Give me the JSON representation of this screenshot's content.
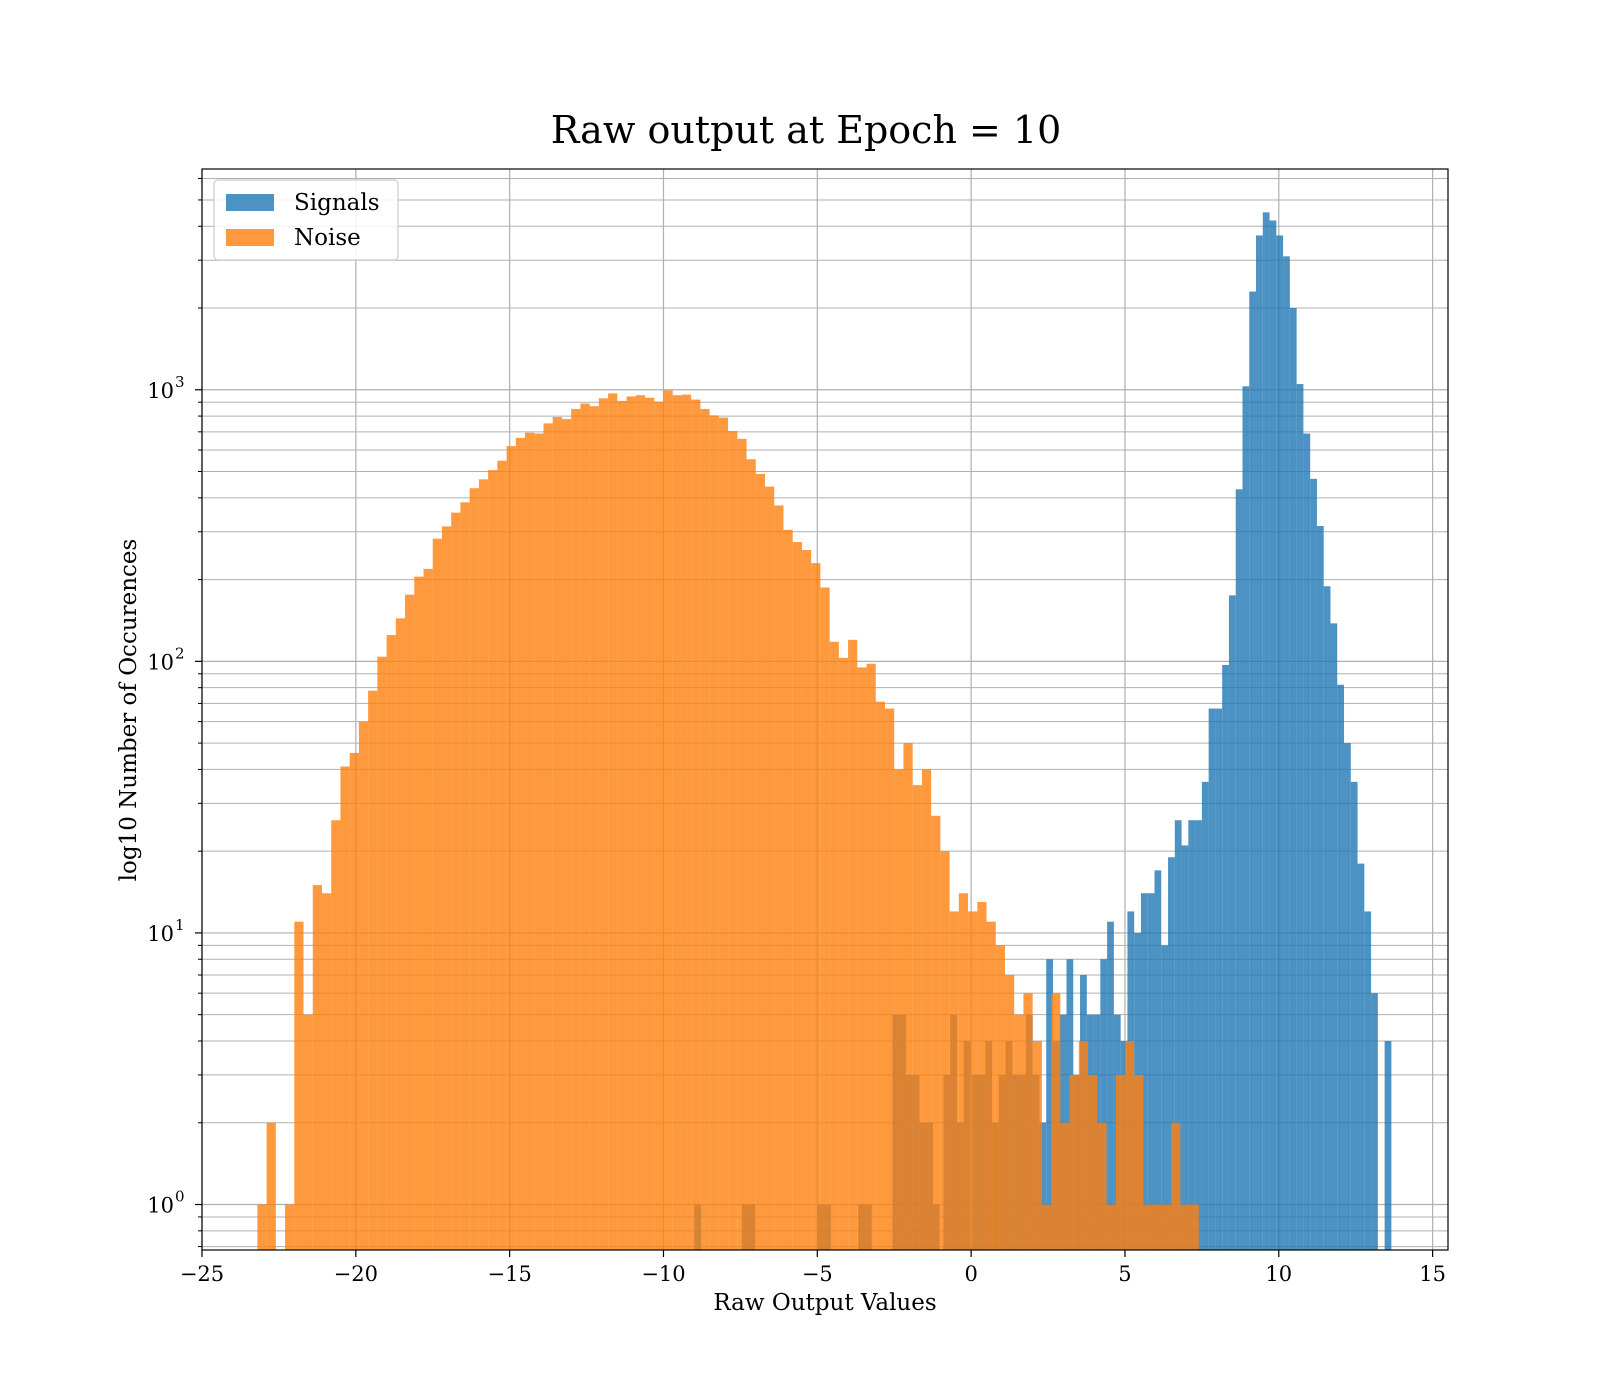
{
  "chart_data": {
    "type": "bar",
    "subtype": "histogram",
    "title": "Raw output at Epoch = 10",
    "xlabel": "Raw Output Values",
    "ylabel": "log10 Number of Occurences",
    "xlim": [
      -25,
      15.5
    ],
    "ylim": [
      0.68,
      6500
    ],
    "yscale": "log",
    "grid": true,
    "legend_position": "top-left",
    "x_ticks": [
      -25,
      -20,
      -15,
      -10,
      -5,
      0,
      5,
      10,
      15
    ],
    "x_tick_labels": [
      "−25",
      "−20",
      "−15",
      "−10",
      "−5",
      "0",
      "5",
      "10",
      "15"
    ],
    "y_ticks": [
      1,
      10,
      100,
      1000
    ],
    "y_tick_labels": [
      {
        "base": "10",
        "exp": "0"
      },
      {
        "base": "10",
        "exp": "1"
      },
      {
        "base": "10",
        "exp": "2"
      },
      {
        "base": "10",
        "exp": "3"
      }
    ],
    "series": [
      {
        "name": "Signals",
        "color": "#1f77b4",
        "opacity": 0.8,
        "bins": [
          [
            -9.0,
            -8.78,
            1
          ],
          [
            -7.45,
            -7.23,
            1
          ],
          [
            -7.23,
            -7.01,
            1
          ],
          [
            -5.0,
            -4.78,
            1
          ],
          [
            -4.78,
            -4.56,
            1
          ],
          [
            -3.67,
            -3.45,
            1
          ],
          [
            -3.45,
            -3.23,
            1
          ],
          [
            -2.56,
            -2.34,
            5
          ],
          [
            -2.34,
            -2.12,
            5
          ],
          [
            -2.12,
            -1.9,
            3
          ],
          [
            -1.9,
            -1.68,
            3
          ],
          [
            -1.68,
            -1.46,
            2
          ],
          [
            -1.46,
            -1.24,
            2
          ],
          [
            -1.24,
            -1.02,
            1
          ],
          [
            -0.9,
            -0.68,
            3
          ],
          [
            -0.68,
            -0.46,
            5
          ],
          [
            -0.46,
            -0.24,
            2
          ],
          [
            -0.24,
            -0.02,
            4
          ],
          [
            0.02,
            0.24,
            3
          ],
          [
            0.24,
            0.46,
            3
          ],
          [
            0.46,
            0.68,
            4
          ],
          [
            0.68,
            0.9,
            2
          ],
          [
            0.9,
            1.12,
            3
          ],
          [
            1.12,
            1.34,
            4
          ],
          [
            1.34,
            1.56,
            3
          ],
          [
            1.56,
            1.78,
            3
          ],
          [
            1.78,
            2.0,
            5
          ],
          [
            2.0,
            2.22,
            3
          ],
          [
            2.22,
            2.44,
            2
          ],
          [
            2.44,
            2.66,
            8
          ],
          [
            2.66,
            2.88,
            4
          ],
          [
            2.88,
            3.1,
            5
          ],
          [
            3.1,
            3.32,
            8
          ],
          [
            3.32,
            3.54,
            3
          ],
          [
            3.54,
            3.76,
            7
          ],
          [
            3.76,
            3.98,
            5
          ],
          [
            3.98,
            4.2,
            5
          ],
          [
            4.2,
            4.42,
            8
          ],
          [
            4.42,
            4.64,
            11
          ],
          [
            4.64,
            4.86,
            5
          ],
          [
            4.86,
            5.08,
            4
          ],
          [
            5.08,
            5.3,
            12
          ],
          [
            5.3,
            5.52,
            10
          ],
          [
            5.52,
            5.74,
            14
          ],
          [
            5.74,
            5.96,
            14
          ],
          [
            5.96,
            6.18,
            17
          ],
          [
            6.18,
            6.4,
            9
          ],
          [
            6.4,
            6.62,
            19
          ],
          [
            6.62,
            6.84,
            26
          ],
          [
            6.84,
            7.06,
            21
          ],
          [
            7.06,
            7.28,
            26
          ],
          [
            7.28,
            7.5,
            26
          ],
          [
            7.5,
            7.72,
            36
          ],
          [
            7.72,
            7.94,
            67
          ],
          [
            7.94,
            8.16,
            67
          ],
          [
            8.16,
            8.38,
            97
          ],
          [
            8.38,
            8.6,
            175
          ],
          [
            8.6,
            8.82,
            430
          ],
          [
            8.82,
            9.04,
            1030
          ],
          [
            9.04,
            9.26,
            2300
          ],
          [
            9.26,
            9.48,
            3700
          ],
          [
            9.48,
            9.7,
            4500
          ],
          [
            9.7,
            9.92,
            4200
          ],
          [
            9.92,
            10.14,
            3700
          ],
          [
            10.14,
            10.36,
            3100
          ],
          [
            10.36,
            10.58,
            2000
          ],
          [
            10.58,
            10.8,
            1050
          ],
          [
            10.8,
            11.02,
            690
          ],
          [
            11.02,
            11.24,
            470
          ],
          [
            11.24,
            11.46,
            315
          ],
          [
            11.46,
            11.68,
            189
          ],
          [
            11.68,
            11.9,
            138
          ],
          [
            11.9,
            12.12,
            82
          ],
          [
            12.12,
            12.34,
            50
          ],
          [
            12.34,
            12.56,
            36
          ],
          [
            12.56,
            12.78,
            18
          ],
          [
            12.78,
            13.0,
            12
          ],
          [
            13.0,
            13.22,
            6
          ],
          [
            13.44,
            13.66,
            4
          ]
        ]
      },
      {
        "name": "Noise",
        "color": "#ff7f0e",
        "opacity": 0.8,
        "bins": [
          [
            -23.2,
            -22.9,
            1
          ],
          [
            -22.9,
            -22.6,
            2
          ],
          [
            -22.3,
            -22.0,
            1
          ],
          [
            -22.0,
            -21.7,
            11
          ],
          [
            -21.7,
            -21.4,
            5
          ],
          [
            -21.4,
            -21.1,
            15
          ],
          [
            -21.1,
            -20.8,
            14
          ],
          [
            -20.8,
            -20.5,
            26
          ],
          [
            -20.5,
            -20.2,
            41
          ],
          [
            -20.2,
            -19.9,
            46
          ],
          [
            -19.9,
            -19.6,
            60
          ],
          [
            -19.6,
            -19.3,
            78
          ],
          [
            -19.3,
            -19.0,
            104
          ],
          [
            -19.0,
            -18.7,
            125
          ],
          [
            -18.7,
            -18.4,
            144
          ],
          [
            -18.4,
            -18.1,
            176
          ],
          [
            -18.1,
            -17.8,
            205
          ],
          [
            -17.8,
            -17.5,
            219
          ],
          [
            -17.5,
            -17.2,
            283
          ],
          [
            -17.2,
            -16.9,
            314
          ],
          [
            -16.9,
            -16.6,
            353
          ],
          [
            -16.6,
            -16.3,
            385
          ],
          [
            -16.3,
            -16.0,
            434
          ],
          [
            -16.0,
            -15.7,
            468
          ],
          [
            -15.7,
            -15.4,
            506
          ],
          [
            -15.4,
            -15.1,
            548
          ],
          [
            -15.1,
            -14.8,
            620
          ],
          [
            -14.8,
            -14.5,
            665
          ],
          [
            -14.5,
            -14.2,
            695
          ],
          [
            -14.2,
            -13.9,
            690
          ],
          [
            -13.9,
            -13.6,
            752
          ],
          [
            -13.6,
            -13.3,
            794
          ],
          [
            -13.3,
            -13.0,
            780
          ],
          [
            -13.0,
            -12.7,
            850
          ],
          [
            -12.7,
            -12.4,
            890
          ],
          [
            -12.4,
            -12.1,
            870
          ],
          [
            -12.1,
            -11.8,
            930
          ],
          [
            -11.8,
            -11.5,
            970
          ],
          [
            -11.5,
            -11.2,
            910
          ],
          [
            -11.2,
            -10.9,
            945
          ],
          [
            -10.9,
            -10.6,
            955
          ],
          [
            -10.6,
            -10.3,
            935
          ],
          [
            -10.3,
            -10.0,
            905
          ],
          [
            -10.0,
            -9.7,
            995
          ],
          [
            -9.7,
            -9.4,
            955
          ],
          [
            -9.4,
            -9.1,
            960
          ],
          [
            -9.1,
            -8.8,
            920
          ],
          [
            -8.8,
            -8.5,
            850
          ],
          [
            -8.5,
            -8.2,
            805
          ],
          [
            -8.2,
            -7.9,
            790
          ],
          [
            -7.9,
            -7.6,
            705
          ],
          [
            -7.6,
            -7.3,
            660
          ],
          [
            -7.3,
            -7.0,
            555
          ],
          [
            -7.0,
            -6.7,
            490
          ],
          [
            -6.7,
            -6.4,
            440
          ],
          [
            -6.4,
            -6.1,
            375
          ],
          [
            -6.1,
            -5.8,
            305
          ],
          [
            -5.8,
            -5.5,
            275
          ],
          [
            -5.5,
            -5.2,
            257
          ],
          [
            -5.2,
            -4.9,
            230
          ],
          [
            -4.9,
            -4.6,
            187
          ],
          [
            -4.6,
            -4.3,
            118
          ],
          [
            -4.3,
            -4.0,
            103
          ],
          [
            -4.0,
            -3.7,
            120
          ],
          [
            -3.7,
            -3.4,
            95
          ],
          [
            -3.4,
            -3.1,
            98
          ],
          [
            -3.1,
            -2.8,
            71
          ],
          [
            -2.8,
            -2.5,
            67
          ],
          [
            -2.5,
            -2.2,
            40
          ],
          [
            -2.2,
            -1.9,
            50
          ],
          [
            -1.9,
            -1.6,
            35
          ],
          [
            -1.6,
            -1.3,
            40
          ],
          [
            -1.3,
            -1.0,
            27
          ],
          [
            -1.0,
            -0.7,
            20
          ],
          [
            -0.7,
            -0.4,
            12
          ],
          [
            -0.4,
            -0.1,
            14
          ],
          [
            -0.1,
            0.2,
            12
          ],
          [
            0.2,
            0.5,
            13
          ],
          [
            0.5,
            0.8,
            11
          ],
          [
            0.8,
            1.1,
            9
          ],
          [
            1.1,
            1.4,
            7
          ],
          [
            1.4,
            1.7,
            5
          ],
          [
            1.7,
            2.0,
            6
          ],
          [
            2.0,
            2.3,
            4
          ],
          [
            2.3,
            2.6,
            1
          ],
          [
            2.6,
            2.9,
            6
          ],
          [
            2.9,
            3.2,
            2
          ],
          [
            3.2,
            3.5,
            3
          ],
          [
            3.5,
            3.8,
            4
          ],
          [
            3.8,
            4.1,
            3
          ],
          [
            4.1,
            4.4,
            2
          ],
          [
            4.4,
            4.7,
            1
          ],
          [
            4.7,
            5.0,
            3
          ],
          [
            5.0,
            5.3,
            4
          ],
          [
            5.3,
            5.6,
            3
          ],
          [
            5.6,
            5.9,
            1
          ],
          [
            5.9,
            6.2,
            1
          ],
          [
            6.2,
            6.5,
            1
          ],
          [
            6.5,
            6.8,
            2
          ],
          [
            6.8,
            7.1,
            1
          ],
          [
            7.1,
            7.4,
            1
          ]
        ]
      }
    ]
  }
}
